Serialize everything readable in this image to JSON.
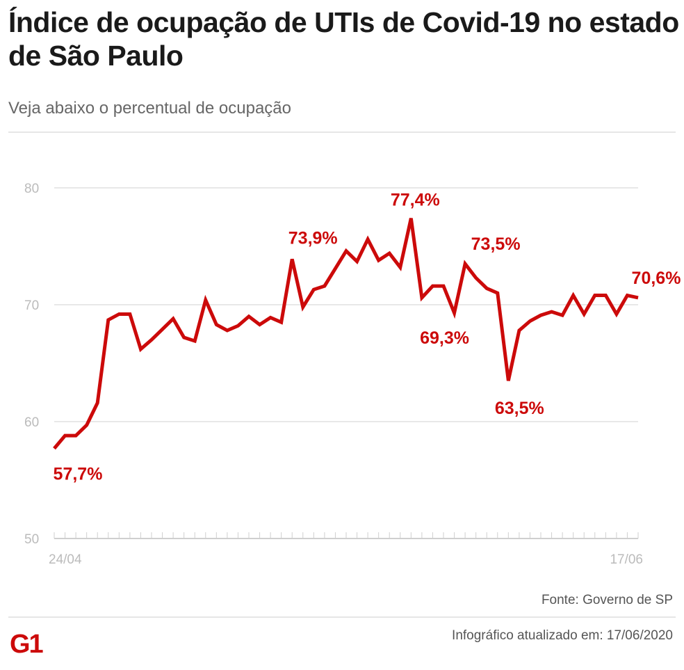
{
  "title": "Índice de ocupação de UTIs de Covid-19 no estado de São Paulo",
  "subtitle": "Veja abaixo o percentual de ocupação",
  "source": "Fonte: Governo de SP",
  "updated": "Infográfico atualizado em: 17/06/2020",
  "logo": "G1",
  "colors": {
    "line": "#cc0a0a",
    "grid": "#e0e0e0",
    "axis_text": "#bbbbbb"
  },
  "chart_data": {
    "type": "line",
    "title": "",
    "xlabel": "",
    "ylabel": "",
    "ylim": [
      50,
      80
    ],
    "yticks": [
      80,
      70,
      60,
      50
    ],
    "xtick_labels": [
      "24/04",
      "17/06"
    ],
    "x_range": [
      "24/04",
      "17/06"
    ],
    "grid": true,
    "values": [
      57.7,
      58.8,
      58.8,
      59.7,
      61.6,
      68.7,
      69.2,
      69.2,
      66.2,
      67.0,
      67.9,
      68.8,
      67.2,
      66.9,
      70.4,
      68.3,
      67.8,
      68.2,
      69.0,
      68.3,
      68.9,
      68.5,
      73.9,
      69.8,
      71.3,
      71.6,
      73.1,
      74.6,
      73.7,
      75.6,
      73.8,
      74.4,
      73.2,
      77.4,
      70.6,
      71.6,
      71.6,
      69.3,
      73.5,
      72.3,
      71.4,
      71.0,
      63.5,
      67.8,
      68.6,
      69.1,
      69.4,
      69.1,
      70.8,
      69.2,
      70.8,
      70.8,
      69.2,
      70.8,
      70.6
    ],
    "annotations": [
      {
        "index": 0,
        "text": "57,7%"
      },
      {
        "index": 22,
        "text": "73,9%"
      },
      {
        "index": 33,
        "text": "77,4%"
      },
      {
        "index": 37,
        "text": "69,3%"
      },
      {
        "index": 38,
        "text": "73,5%"
      },
      {
        "index": 42,
        "text": "63,5%"
      },
      {
        "index": 54,
        "text": "70,6%"
      }
    ]
  }
}
